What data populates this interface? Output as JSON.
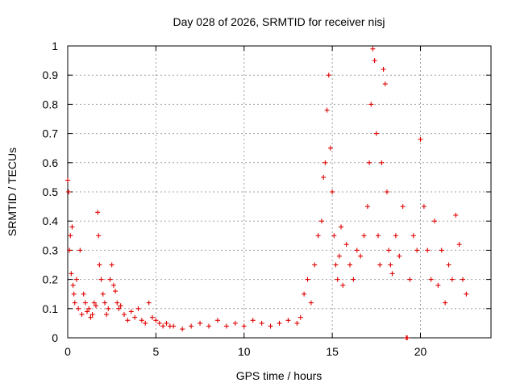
{
  "chart_data": {
    "type": "scatter",
    "title": "Day 028 of 2026, SRMTID for receiver nisj",
    "xlabel": "GPS time / hours",
    "ylabel": "SRMTID / TECUs",
    "xlim": [
      0,
      24
    ],
    "ylim": [
      0,
      1
    ],
    "xticks": [
      0,
      5,
      10,
      15,
      20
    ],
    "xtick_labels": [
      "0",
      "5",
      "10",
      "15",
      "20"
    ],
    "yticks": [
      0,
      0.1,
      0.2,
      0.3,
      0.4,
      0.5,
      0.6,
      0.7,
      0.8,
      0.9,
      1
    ],
    "ytick_labels": [
      "0",
      "0.1",
      "0.2",
      "0.3",
      "0.4",
      "0.5",
      "0.6",
      "0.7",
      "0.8",
      "0.9",
      "1"
    ],
    "grid": true,
    "marker": "+",
    "color": "#e00000",
    "series": [
      {
        "name": "SRMTID",
        "x": [
          0.0,
          0.05,
          0.1,
          0.15,
          0.2,
          0.25,
          0.3,
          0.35,
          0.4,
          0.5,
          0.6,
          0.7,
          0.8,
          0.9,
          1.0,
          1.1,
          1.2,
          1.3,
          1.4,
          1.5,
          1.6,
          1.7,
          1.75,
          1.8,
          1.9,
          2.0,
          2.1,
          2.2,
          2.3,
          2.4,
          2.5,
          2.6,
          2.7,
          2.8,
          2.9,
          3.0,
          3.2,
          3.4,
          3.6,
          3.8,
          4.0,
          4.2,
          4.4,
          4.6,
          4.8,
          5.0,
          5.2,
          5.4,
          5.6,
          5.8,
          6.0,
          6.5,
          7.0,
          7.5,
          8.0,
          8.5,
          9.0,
          9.5,
          10.0,
          10.5,
          11.0,
          11.5,
          12.0,
          12.5,
          13.0,
          13.2,
          13.4,
          13.6,
          13.8,
          14.0,
          14.2,
          14.4,
          14.5,
          14.6,
          14.7,
          14.8,
          14.9,
          15.0,
          15.1,
          15.2,
          15.3,
          15.4,
          15.5,
          15.6,
          15.8,
          16.0,
          16.2,
          16.4,
          16.6,
          16.8,
          17.0,
          17.1,
          17.2,
          17.3,
          17.4,
          17.5,
          17.6,
          17.7,
          17.8,
          17.9,
          18.0,
          18.1,
          18.2,
          18.3,
          18.4,
          18.6,
          18.8,
          19.0,
          19.2,
          19.25,
          19.4,
          19.6,
          19.8,
          20.0,
          20.2,
          20.4,
          20.6,
          20.8,
          21.0,
          21.2,
          21.4,
          21.6,
          21.8,
          22.0,
          22.2,
          22.4,
          22.6
        ],
        "y": [
          0.54,
          0.5,
          0.3,
          0.35,
          0.22,
          0.38,
          0.18,
          0.15,
          0.12,
          0.2,
          0.1,
          0.3,
          0.08,
          0.15,
          0.12,
          0.09,
          0.1,
          0.07,
          0.08,
          0.12,
          0.11,
          0.43,
          0.35,
          0.25,
          0.2,
          0.15,
          0.12,
          0.08,
          0.1,
          0.2,
          0.25,
          0.18,
          0.16,
          0.12,
          0.1,
          0.11,
          0.08,
          0.06,
          0.09,
          0.07,
          0.1,
          0.06,
          0.05,
          0.12,
          0.07,
          0.06,
          0.05,
          0.04,
          0.05,
          0.04,
          0.04,
          0.03,
          0.04,
          0.05,
          0.04,
          0.06,
          0.04,
          0.05,
          0.04,
          0.06,
          0.05,
          0.04,
          0.05,
          0.06,
          0.05,
          0.07,
          0.15,
          0.2,
          0.12,
          0.25,
          0.35,
          0.4,
          0.55,
          0.6,
          0.78,
          0.9,
          0.65,
          0.5,
          0.35,
          0.25,
          0.2,
          0.28,
          0.38,
          0.18,
          0.32,
          0.25,
          0.2,
          0.3,
          0.28,
          0.35,
          0.45,
          0.6,
          0.8,
          0.99,
          0.95,
          0.7,
          0.35,
          0.25,
          0.6,
          0.92,
          0.87,
          0.5,
          0.3,
          0.25,
          0.22,
          0.35,
          0.28,
          0.45,
          0.0,
          0.0,
          0.2,
          0.35,
          0.3,
          0.68,
          0.45,
          0.3,
          0.2,
          0.4,
          0.18,
          0.3,
          0.12,
          0.25,
          0.2,
          0.42,
          0.32,
          0.2,
          0.15
        ]
      }
    ]
  }
}
